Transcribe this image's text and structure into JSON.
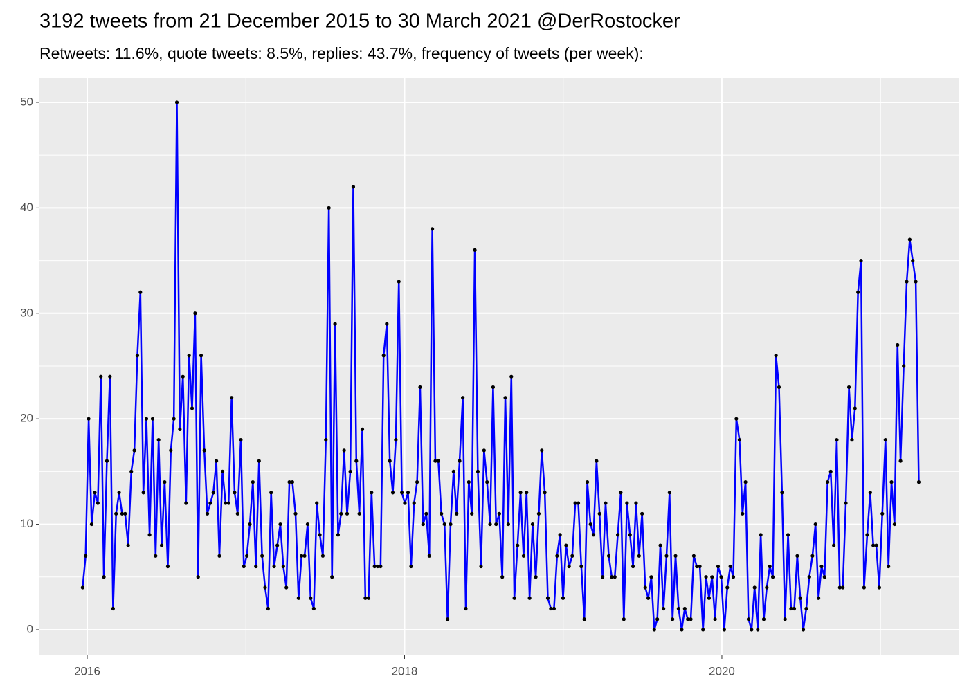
{
  "chart_data": {
    "type": "line",
    "title": "3192 tweets from 21 December 2015 to 30 March 2021 @DerRostocker",
    "subtitle": "Retweets: 11.6%, quote tweets: 8.5%, replies: 43.7%, frequency of tweets (per week):",
    "x": [
      2015.971,
      2015.99,
      2016.009,
      2016.028,
      2016.048,
      2016.067,
      2016.086,
      2016.105,
      2016.124,
      2016.143,
      2016.163,
      2016.182,
      2016.201,
      2016.22,
      2016.239,
      2016.258,
      2016.278,
      2016.297,
      2016.316,
      2016.335,
      2016.354,
      2016.373,
      2016.393,
      2016.412,
      2016.431,
      2016.45,
      2016.469,
      2016.488,
      2016.508,
      2016.527,
      2016.546,
      2016.565,
      2016.584,
      2016.603,
      2016.623,
      2016.642,
      2016.661,
      2016.68,
      2016.699,
      2016.718,
      2016.738,
      2016.757,
      2016.776,
      2016.795,
      2016.814,
      2016.833,
      2016.853,
      2016.872,
      2016.891,
      2016.91,
      2016.929,
      2016.948,
      2016.968,
      2016.987,
      2017.006,
      2017.025,
      2017.044,
      2017.063,
      2017.083,
      2017.102,
      2017.121,
      2017.14,
      2017.159,
      2017.178,
      2017.198,
      2017.217,
      2017.236,
      2017.255,
      2017.274,
      2017.293,
      2017.313,
      2017.332,
      2017.351,
      2017.37,
      2017.389,
      2017.408,
      2017.428,
      2017.447,
      2017.466,
      2017.485,
      2017.504,
      2017.523,
      2017.543,
      2017.562,
      2017.581,
      2017.6,
      2017.619,
      2017.638,
      2017.658,
      2017.677,
      2017.696,
      2017.715,
      2017.734,
      2017.753,
      2017.773,
      2017.792,
      2017.811,
      2017.83,
      2017.849,
      2017.868,
      2017.888,
      2017.907,
      2017.926,
      2017.945,
      2017.964,
      2017.983,
      2018.002,
      2018.022,
      2018.041,
      2018.06,
      2018.079,
      2018.098,
      2018.117,
      2018.137,
      2018.156,
      2018.175,
      2018.194,
      2018.213,
      2018.232,
      2018.252,
      2018.271,
      2018.29,
      2018.309,
      2018.328,
      2018.347,
      2018.367,
      2018.386,
      2018.405,
      2018.424,
      2018.443,
      2018.462,
      2018.482,
      2018.501,
      2018.52,
      2018.539,
      2018.558,
      2018.577,
      2018.597,
      2018.616,
      2018.635,
      2018.654,
      2018.673,
      2018.692,
      2018.712,
      2018.731,
      2018.75,
      2018.769,
      2018.788,
      2018.807,
      2018.827,
      2018.846,
      2018.865,
      2018.884,
      2018.903,
      2018.922,
      2018.942,
      2018.961,
      2018.98,
      2018.999,
      2019.018,
      2019.037,
      2019.057,
      2019.076,
      2019.095,
      2019.114,
      2019.133,
      2019.152,
      2019.172,
      2019.191,
      2019.21,
      2019.229,
      2019.248,
      2019.267,
      2019.287,
      2019.306,
      2019.325,
      2019.344,
      2019.363,
      2019.382,
      2019.402,
      2019.421,
      2019.44,
      2019.459,
      2019.478,
      2019.497,
      2019.517,
      2019.536,
      2019.555,
      2019.574,
      2019.593,
      2019.612,
      2019.632,
      2019.651,
      2019.67,
      2019.689,
      2019.708,
      2019.727,
      2019.747,
      2019.766,
      2019.785,
      2019.804,
      2019.823,
      2019.842,
      2019.861,
      2019.881,
      2019.9,
      2019.919,
      2019.938,
      2019.957,
      2019.976,
      2019.996,
      2020.015,
      2020.034,
      2020.053,
      2020.072,
      2020.091,
      2020.111,
      2020.13,
      2020.149,
      2020.168,
      2020.187,
      2020.206,
      2020.226,
      2020.245,
      2020.264,
      2020.283,
      2020.302,
      2020.321,
      2020.341,
      2020.36,
      2020.379,
      2020.398,
      2020.417,
      2020.436,
      2020.456,
      2020.475,
      2020.494,
      2020.513,
      2020.532,
      2020.551,
      2020.571,
      2020.59,
      2020.609,
      2020.628,
      2020.647,
      2020.666,
      2020.686,
      2020.705,
      2020.724,
      2020.743,
      2020.762,
      2020.781,
      2020.801,
      2020.82,
      2020.839,
      2020.858,
      2020.877,
      2020.896,
      2020.916,
      2020.935,
      2020.954,
      2020.973,
      2020.992,
      2021.011,
      2021.031,
      2021.05,
      2021.069,
      2021.088,
      2021.107,
      2021.126,
      2021.146,
      2021.165,
      2021.184,
      2021.203,
      2021.222,
      2021.241
    ],
    "series": [
      {
        "color": "#0000ff",
        "marker_color": "#000000",
        "values": [
          4,
          7,
          20,
          10,
          13,
          12,
          24,
          5,
          16,
          24,
          2,
          11,
          13,
          11,
          11,
          8,
          15,
          17,
          26,
          32,
          13,
          20,
          9,
          20,
          7,
          18,
          8,
          14,
          6,
          17,
          20,
          50,
          19,
          24,
          12,
          26,
          21,
          30,
          5,
          26,
          17,
          11,
          12,
          13,
          16,
          7,
          15,
          12,
          12,
          22,
          13,
          11,
          18,
          6,
          7,
          10,
          14,
          6,
          16,
          7,
          4,
          2,
          13,
          6,
          8,
          10,
          6,
          4,
          14,
          14,
          11,
          3,
          7,
          7,
          10,
          3,
          2,
          12,
          9,
          7,
          18,
          40,
          5,
          29,
          9,
          11,
          17,
          11,
          15,
          42,
          16,
          11,
          19,
          3,
          3,
          13,
          6,
          6,
          6,
          26,
          29,
          16,
          13,
          18,
          33,
          13,
          12,
          13,
          6,
          12,
          14,
          23,
          10,
          11,
          7,
          38,
          16,
          16,
          11,
          10,
          1,
          10,
          15,
          11,
          16,
          22,
          2,
          14,
          11,
          36,
          15,
          6,
          17,
          14,
          10,
          23,
          10,
          11,
          5,
          22,
          10,
          24,
          3,
          8,
          13,
          7,
          13,
          3,
          10,
          5,
          11,
          17,
          13,
          3,
          2,
          2,
          7,
          9,
          3,
          8,
          6,
          7,
          12,
          12,
          6,
          1,
          14,
          10,
          9,
          16,
          11,
          5,
          12,
          7,
          5,
          5,
          9,
          13,
          1,
          12,
          9,
          6,
          12,
          7,
          11,
          4,
          3,
          5,
          0,
          1,
          8,
          2,
          7,
          13,
          1,
          7,
          2,
          0,
          2,
          1,
          1,
          7,
          6,
          6,
          0,
          5,
          3,
          5,
          1,
          6,
          5,
          0,
          4,
          6,
          5,
          20,
          18,
          11,
          14,
          1,
          0,
          4,
          0,
          9,
          1,
          4,
          6,
          5,
          26,
          23,
          13,
          1,
          9,
          2,
          2,
          7,
          3,
          0,
          2,
          5,
          7,
          10,
          3,
          6,
          5,
          14,
          15,
          8,
          18,
          4,
          4,
          12,
          23,
          18,
          21,
          32,
          35,
          4,
          9,
          13,
          8,
          8,
          4,
          11,
          18,
          6,
          14,
          10,
          27,
          16,
          25,
          33,
          37,
          35,
          33,
          14
        ]
      }
    ],
    "xlim": [
      2015.699,
      2021.492
    ],
    "xticks": [
      2016,
      2018,
      2020
    ],
    "ylim": [
      -2.43,
      52.36
    ],
    "yticks": [
      0,
      10,
      20,
      30,
      40,
      50
    ],
    "grid": true,
    "minor_grid": true
  }
}
